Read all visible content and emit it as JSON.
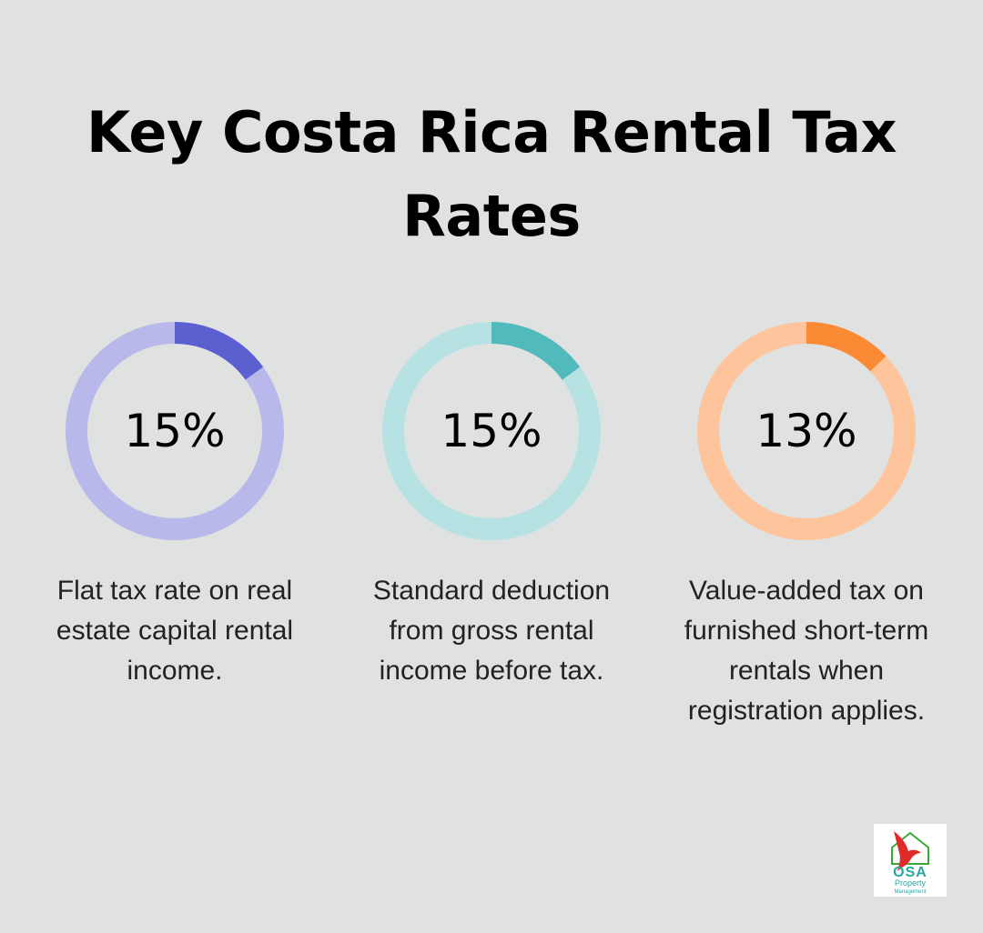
{
  "title": "Key Costa Rica Rental Tax Rates",
  "chart_data": {
    "type": "donut",
    "items": [
      {
        "value": 15,
        "label": "15%",
        "description": "Flat tax rate on real estate capital rental income.",
        "color": "#5b5fd0",
        "track_color": "#b8b9ea"
      },
      {
        "value": 15,
        "label": "15%",
        "description": "Standard deduction from gross rental income before tax.",
        "color": "#52b9bd",
        "track_color": "#b7e2e3"
      },
      {
        "value": 13,
        "label": "13%",
        "description": "Value-added tax on furnished short-term rentals when registration applies.",
        "color": "#fb8a35",
        "track_color": "#fec59c"
      }
    ]
  },
  "logo": {
    "name": "OSA",
    "line1": "Property",
    "line2": "Management",
    "colors": {
      "bird": "#e02b2b",
      "house": "#3aaa35",
      "text": "#2aa6a0"
    }
  }
}
